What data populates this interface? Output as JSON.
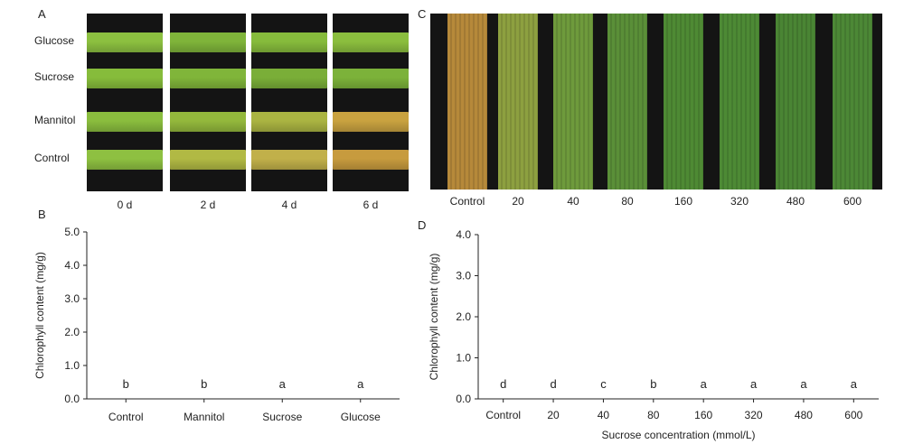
{
  "panelA": {
    "letter": "A",
    "rows": [
      "Glucose",
      "Sucrose",
      "Mannitol",
      "Control"
    ],
    "days": [
      "0 d",
      "2 d",
      "4 d",
      "6 d"
    ],
    "colors": [
      [
        "#8cc040",
        "#7fb43a",
        "#86bb3c",
        "#8bbe3e"
      ],
      [
        "#86bc3b",
        "#80b53a",
        "#7aae38",
        "#7cb23a"
      ],
      [
        "#8abd3e",
        "#93b83c",
        "#aab442",
        "#c9a240"
      ],
      [
        "#8ec041",
        "#b1b944",
        "#c1b04a",
        "#c79b3e"
      ]
    ]
  },
  "panelC": {
    "letter": "C",
    "labels": [
      "Control",
      "20",
      "40",
      "80",
      "160",
      "320",
      "480",
      "600"
    ],
    "colors": [
      "#b6893a",
      "#8da040",
      "#6e9a3c",
      "#5a8f38",
      "#4e8a34",
      "#4d8a35",
      "#4a8534",
      "#4c8836"
    ]
  },
  "chartB": {
    "letter": "B",
    "chart_data": {
      "type": "bar",
      "categories": [
        "Control",
        "Mannitol",
        "Sucrose",
        "Glucose"
      ],
      "letters": [
        "b",
        "b",
        "a",
        "a"
      ],
      "ylabel": "Chlorophyll content  (mg/g)",
      "xlabel": "",
      "ylim": [
        0,
        5
      ],
      "yticks": [
        "0.0",
        "1.0",
        "2.0",
        "3.0",
        "4.0",
        "5.0"
      ]
    }
  },
  "chartD": {
    "letter": "D",
    "chart_data": {
      "type": "bar",
      "categories": [
        "Control",
        "20",
        "40",
        "80",
        "160",
        "320",
        "480",
        "600"
      ],
      "letters": [
        "d",
        "d",
        "c",
        "b",
        "a",
        "a",
        "a",
        "a"
      ],
      "ylabel": "Chlorophyll content (mg/g)",
      "xlabel": "Sucrose concentration (mmol/L)",
      "ylim": [
        0,
        4
      ],
      "yticks": [
        "0.0",
        "1.0",
        "2.0",
        "3.0",
        "4.0"
      ]
    }
  },
  "colors": {
    "bar": "#2e2a26",
    "axis": "#222222",
    "photo_bg": "#141414"
  }
}
